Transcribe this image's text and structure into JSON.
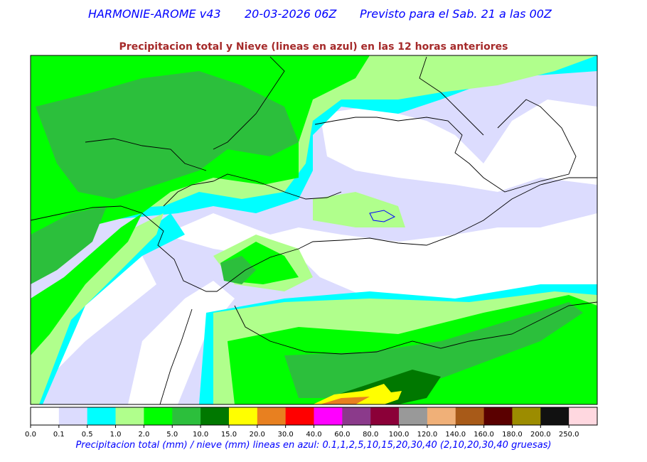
{
  "header": {
    "model": "HARMONIE-AROME v43",
    "run": "20-03-2026 06Z",
    "forecast": "Previsto para el Sab. 21 a las 00Z"
  },
  "subtitle": "Precipitacion total y Nieve (lineas en azul) en las 12 horas anteriores",
  "legend": {
    "colors": [
      "#ffffff",
      "#dcdcfe",
      "#00ffff",
      "#b0ff8c",
      "#00ff00",
      "#2cbf3c",
      "#007800",
      "#ffff00",
      "#e88020",
      "#ff0000",
      "#ff00ff",
      "#8b3a8b",
      "#8b0038",
      "#999999",
      "#f0b078",
      "#a85a18",
      "#5a0000",
      "#9c8c00",
      "#111111",
      "#ffd8e0"
    ],
    "labels": [
      "0.0",
      "0.1",
      "0.5",
      "1.0",
      "2.0",
      "5.0",
      "10.0",
      "15.0",
      "20.0",
      "30.0",
      "40.0",
      "60.0",
      "80.0",
      "100.0",
      "120.0",
      "140.0",
      "160.0",
      "180.0",
      "200.0",
      "250.0"
    ]
  },
  "caption": "Precipitacion total (mm) / nieve (mm) lineas en azul: 0.1,1,2,5,10,15,20,30,40  (2,10,20,30,40 gruesas)"
}
